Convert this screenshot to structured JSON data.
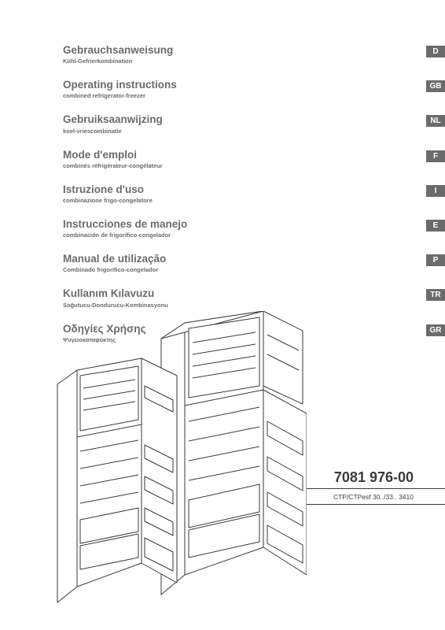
{
  "languages": [
    {
      "title": "Gebrauchsanweisung",
      "subtitle": "Kühl-Gefrierkombination",
      "code": "D"
    },
    {
      "title": "Operating instructions",
      "subtitle": "combined refrigerator-freezer",
      "code": "GB"
    },
    {
      "title": "Gebruiksaanwijzing",
      "subtitle": "koel-vriescombinatie",
      "code": "NL"
    },
    {
      "title": "Mode d'emploi",
      "subtitle": "combinés réfrigérateur-congélateur",
      "code": "F"
    },
    {
      "title": "Istruzione d'uso",
      "subtitle": "combinazione frigo-congelatore",
      "code": "I"
    },
    {
      "title": "Instrucciones de manejo",
      "subtitle": "combinación de frigorífico-congelador",
      "code": "E"
    },
    {
      "title": "Manual de utilização",
      "subtitle": "Combinado frigorífico-congelador",
      "code": "P"
    },
    {
      "title": "Kullanım Kılavuzu",
      "subtitle": "Soğutucu-Dondurucu-Kombinasyonu",
      "code": "TR"
    },
    {
      "title": "Οδηγίες Χρήσης",
      "subtitle": "Ψυγειοκαταψύκτης",
      "code": "GR"
    }
  ],
  "product_number": "7081 976-00",
  "model_line": "CTP/CTPesf 30../33..    3410",
  "colors": {
    "text": "#6b6b6b",
    "badge_bg": "#6b6b6b",
    "badge_fg": "#ffffff",
    "rule": "#3a3a3a",
    "illustration_stroke": "#3a3a3a",
    "illustration_fill": "#ffffff"
  },
  "illustration": {
    "type": "line-drawing",
    "description": "Two open combined refrigerator-freezer units in isometric view",
    "stroke_width": 1,
    "units": 2
  }
}
